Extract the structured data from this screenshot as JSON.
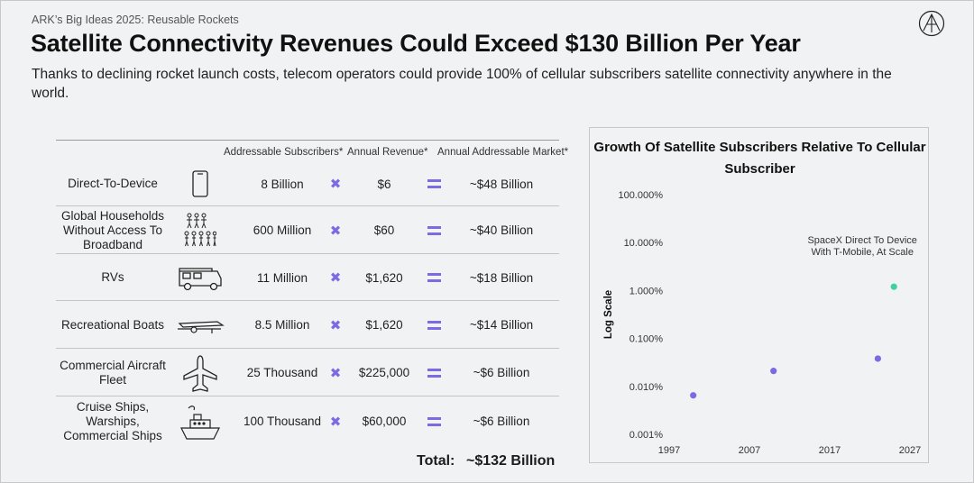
{
  "header": {
    "kicker": "ARK’s Big Ideas 2025: Reusable Rockets",
    "title": "Satellite Connectivity Revenues Could Exceed $130 Billion Per Year",
    "subtitle": "Thanks to declining rocket launch costs, telecom operators could provide 100% of cellular subscribers satellite connectivity anywhere in the world."
  },
  "logo": {
    "icon": "ark-logo-icon"
  },
  "table": {
    "columns": [
      "Addressable Subscribers*",
      "Annual Revenue*",
      "Annual Addressable Market*"
    ],
    "rows": [
      {
        "label": "Direct-To-Device",
        "icon": "smartphone-icon",
        "subscribers": "8 Billion",
        "revenue": "$6",
        "market": "~$48 Billion"
      },
      {
        "label": "Global Households Without Access To Broadband",
        "icon": "households-icon",
        "subscribers": "600 Million",
        "revenue": "$60",
        "market": "~$40 Billion"
      },
      {
        "label": "RVs",
        "icon": "rv-icon",
        "subscribers": "11 Million",
        "revenue": "$1,620",
        "market": "~$18 Billion"
      },
      {
        "label": "Recreational Boats",
        "icon": "boat-trailer-icon",
        "subscribers": "8.5 Million",
        "revenue": "$1,620",
        "market": "~$14 Billion"
      },
      {
        "label": "Commercial Aircraft Fleet",
        "icon": "airplane-icon",
        "subscribers": "25 Thousand",
        "revenue": "$225,000",
        "market": "~$6 Billion"
      },
      {
        "label": "Cruise Ships, Warships, Commercial Ships",
        "icon": "ship-icon",
        "subscribers": "100 Thousand",
        "revenue": "$60,000",
        "market": "~$6 Billion"
      }
    ],
    "operators": {
      "multiply": "✖",
      "multiply_icon": "multiply-icon",
      "equals_icon": "equals-icon"
    },
    "total_label": "Total:",
    "total_value": "~$132 Billion",
    "accent_color": "#7b6be3"
  },
  "chart_data": {
    "type": "scatter",
    "title": "Growth Of Satellite Subscribers Relative To Cellular Subscriber",
    "ylabel": "Log Scale",
    "xlabel": "",
    "yscale": "log",
    "xlim": [
      1997,
      2027
    ],
    "ylim": [
      0.001,
      100
    ],
    "x_ticks": [
      "1997",
      "2007",
      "2017",
      "2027"
    ],
    "y_ticks": [
      {
        "value": 100,
        "label": "100.000%"
      },
      {
        "value": 10,
        "label": "10.000%"
      },
      {
        "value": 1,
        "label": "1.000%"
      },
      {
        "value": 0.1,
        "label": "0.100%"
      },
      {
        "value": 0.01,
        "label": "0.010%"
      },
      {
        "value": 0.001,
        "label": "0.001%"
      }
    ],
    "grid": false,
    "points": [
      {
        "x": 2000,
        "y": 0.0065,
        "color": "#7b6be3"
      },
      {
        "x": 2010,
        "y": 0.021,
        "color": "#7b6be3"
      },
      {
        "x": 2023,
        "y": 0.038,
        "color": "#7b6be3"
      },
      {
        "x": 2025,
        "y": 1.2,
        "color": "#3fd1a0"
      }
    ],
    "annotations": [
      {
        "text": "SpaceX Direct To Device With T-Mobile, At Scale",
        "lines": [
          "SpaceX Direct To Device",
          "With T-Mobile, At Scale"
        ],
        "point_index": 3
      }
    ]
  }
}
